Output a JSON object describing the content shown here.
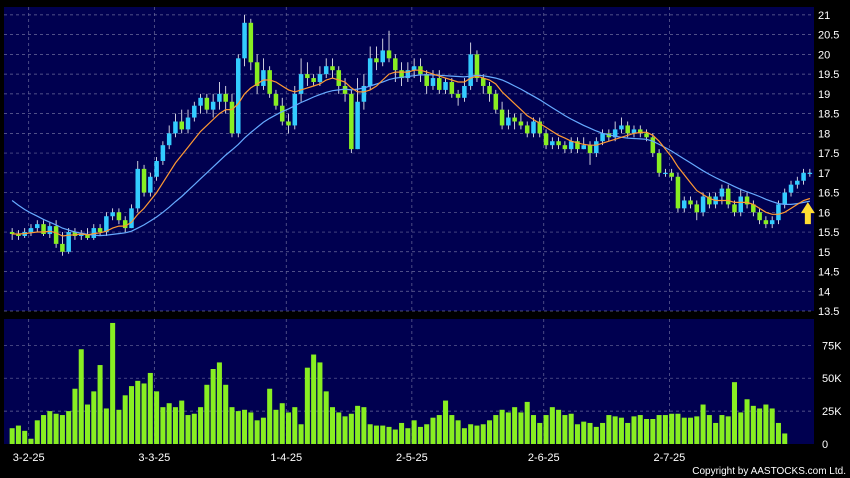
{
  "chart_data": [
    {
      "type": "candlestick",
      "title": "",
      "ylim": [
        13.5,
        21.2
      ],
      "y_ticks": [
        "21",
        "20.5",
        "20",
        "19.5",
        "19",
        "18.5",
        "18",
        "17.5",
        "17",
        "16.5",
        "16",
        "15.5",
        "15",
        "14.5",
        "14",
        "13.5"
      ],
      "x_labels": [
        "3-2-25",
        "3-3-25",
        "1-4-25",
        "2-5-25",
        "2-6-25",
        "2-7-25"
      ],
      "grid": true,
      "colors": {
        "background": "#000050",
        "up": "#33ccff",
        "down": "#88ee22",
        "ma_short": "#ff9933",
        "ma_long": "#66aaff",
        "grid": "#6a6a9a",
        "arrow": "#ffdd33"
      },
      "candles": [
        [
          15.5,
          15.45,
          15.6,
          15.3
        ],
        [
          15.45,
          15.4,
          15.55,
          15.3
        ],
        [
          15.4,
          15.5,
          15.6,
          15.35
        ],
        [
          15.5,
          15.6,
          15.7,
          15.4
        ],
        [
          15.6,
          15.7,
          15.8,
          15.5
        ],
        [
          15.7,
          15.45,
          15.8,
          15.4
        ],
        [
          15.45,
          15.65,
          15.75,
          15.35
        ],
        [
          15.65,
          15.2,
          15.8,
          15.1
        ],
        [
          15.2,
          15.0,
          15.5,
          14.9
        ],
        [
          15.0,
          15.5,
          15.6,
          14.95
        ],
        [
          15.5,
          15.4,
          15.6,
          15.3
        ],
        [
          15.4,
          15.45,
          15.55,
          15.3
        ],
        [
          15.45,
          15.35,
          15.6,
          15.3
        ],
        [
          15.35,
          15.6,
          15.7,
          15.3
        ],
        [
          15.6,
          15.5,
          15.7,
          15.4
        ],
        [
          15.5,
          15.9,
          16.0,
          15.4
        ],
        [
          15.9,
          16.0,
          16.1,
          15.8
        ],
        [
          16.0,
          15.8,
          16.1,
          15.7
        ],
        [
          15.8,
          15.6,
          15.9,
          15.5
        ],
        [
          15.6,
          16.1,
          16.2,
          15.6
        ],
        [
          16.1,
          17.1,
          17.3,
          16.0
        ],
        [
          17.1,
          16.5,
          17.2,
          16.4
        ],
        [
          16.5,
          16.9,
          17.0,
          16.4
        ],
        [
          16.9,
          17.3,
          17.4,
          16.8
        ],
        [
          17.3,
          17.7,
          17.8,
          17.2
        ],
        [
          17.7,
          18.0,
          18.2,
          17.6
        ],
        [
          18.0,
          18.3,
          18.5,
          17.9
        ],
        [
          18.3,
          18.1,
          18.6,
          18.0
        ],
        [
          18.1,
          18.4,
          18.6,
          18.0
        ],
        [
          18.4,
          18.7,
          18.8,
          18.3
        ],
        [
          18.7,
          18.9,
          19.0,
          18.5
        ],
        [
          18.9,
          18.6,
          19.0,
          18.5
        ],
        [
          18.6,
          18.8,
          19.0,
          18.4
        ],
        [
          18.8,
          19.0,
          19.3,
          18.6
        ],
        [
          19.0,
          18.8,
          19.2,
          18.5
        ],
        [
          18.8,
          18.0,
          19.0,
          17.9
        ],
        [
          18.0,
          19.9,
          20.0,
          17.9
        ],
        [
          19.9,
          20.8,
          21.0,
          19.7
        ],
        [
          20.8,
          19.8,
          20.9,
          19.6
        ],
        [
          19.8,
          19.2,
          20.0,
          19.0
        ],
        [
          19.2,
          19.6,
          19.9,
          19.1
        ],
        [
          19.6,
          19.0,
          19.7,
          18.9
        ],
        [
          19.0,
          18.7,
          19.1,
          18.6
        ],
        [
          18.7,
          18.3,
          18.9,
          18.2
        ],
        [
          18.3,
          18.2,
          18.5,
          18.0
        ],
        [
          18.2,
          19.0,
          19.2,
          18.1
        ],
        [
          19.0,
          19.5,
          19.9,
          18.8
        ],
        [
          19.5,
          19.4,
          19.8,
          19.2
        ],
        [
          19.4,
          19.3,
          19.5,
          19.2
        ],
        [
          19.3,
          19.5,
          19.7,
          19.2
        ],
        [
          19.5,
          19.7,
          19.9,
          19.4
        ],
        [
          19.7,
          19.6,
          19.9,
          19.4
        ],
        [
          19.6,
          19.2,
          19.7,
          19.0
        ],
        [
          19.2,
          19.0,
          19.4,
          18.8
        ],
        [
          19.0,
          17.6,
          19.1,
          17.5
        ],
        [
          17.6,
          18.8,
          19.4,
          17.6
        ],
        [
          18.8,
          19.2,
          19.5,
          18.6
        ],
        [
          19.2,
          19.9,
          20.2,
          19.1
        ],
        [
          19.9,
          19.8,
          20.2,
          19.6
        ],
        [
          19.8,
          20.1,
          20.4,
          19.7
        ],
        [
          20.1,
          19.9,
          20.6,
          19.8
        ],
        [
          19.9,
          19.6,
          20.0,
          19.3
        ],
        [
          19.6,
          19.4,
          19.8,
          19.2
        ],
        [
          19.4,
          19.6,
          19.8,
          19.3
        ],
        [
          19.6,
          19.7,
          19.9,
          19.4
        ],
        [
          19.7,
          19.5,
          19.9,
          19.3
        ],
        [
          19.5,
          19.2,
          19.6,
          19.0
        ],
        [
          19.2,
          19.4,
          19.6,
          19.1
        ],
        [
          19.4,
          19.1,
          19.6,
          19.0
        ],
        [
          19.1,
          19.3,
          19.4,
          19.0
        ],
        [
          19.3,
          19.0,
          19.4,
          18.9
        ],
        [
          19.0,
          18.9,
          19.1,
          18.7
        ],
        [
          18.9,
          19.2,
          19.4,
          18.8
        ],
        [
          19.2,
          20.0,
          20.3,
          19.1
        ],
        [
          20.0,
          19.4,
          20.1,
          19.3
        ],
        [
          19.4,
          19.2,
          19.5,
          19.0
        ],
        [
          19.2,
          19.0,
          19.3,
          18.8
        ],
        [
          19.0,
          18.6,
          19.1,
          18.5
        ],
        [
          18.6,
          18.2,
          18.8,
          18.1
        ],
        [
          18.2,
          18.4,
          18.6,
          18.1
        ],
        [
          18.4,
          18.3,
          18.5,
          18.1
        ],
        [
          18.3,
          18.2,
          18.5,
          18.1
        ],
        [
          18.2,
          18.0,
          18.3,
          17.9
        ],
        [
          18.0,
          18.3,
          18.4,
          17.9
        ],
        [
          18.3,
          18.0,
          18.4,
          17.9
        ],
        [
          18.0,
          17.7,
          18.1,
          17.6
        ],
        [
          17.7,
          17.8,
          17.9,
          17.6
        ],
        [
          17.8,
          17.7,
          17.9,
          17.6
        ],
        [
          17.7,
          17.6,
          17.8,
          17.5
        ],
        [
          17.6,
          17.8,
          17.9,
          17.5
        ],
        [
          17.8,
          17.6,
          17.9,
          17.5
        ],
        [
          17.6,
          17.7,
          17.9,
          17.6
        ],
        [
          17.7,
          17.5,
          17.8,
          17.2
        ],
        [
          17.5,
          17.8,
          17.9,
          17.4
        ],
        [
          17.8,
          18.0,
          18.1,
          17.7
        ],
        [
          18.0,
          17.9,
          18.1,
          17.8
        ],
        [
          17.9,
          18.1,
          18.3,
          17.8
        ],
        [
          18.1,
          18.2,
          18.4,
          18.0
        ],
        [
          18.2,
          18.0,
          18.3,
          17.9
        ],
        [
          18.0,
          18.1,
          18.2,
          17.9
        ],
        [
          18.1,
          18.0,
          18.2,
          17.9
        ],
        [
          18.0,
          17.9,
          18.1,
          17.8
        ],
        [
          17.9,
          17.5,
          18.0,
          17.4
        ],
        [
          17.5,
          17.0,
          17.6,
          16.9
        ],
        [
          17.0,
          17.0,
          17.1,
          16.9
        ],
        [
          17.0,
          16.9,
          17.1,
          16.8
        ],
        [
          16.9,
          16.1,
          17.0,
          16.0
        ],
        [
          16.1,
          16.3,
          16.4,
          16.0
        ],
        [
          16.3,
          16.2,
          16.4,
          16.1
        ],
        [
          16.2,
          16.0,
          16.3,
          15.8
        ],
        [
          16.0,
          16.4,
          16.5,
          15.9
        ],
        [
          16.4,
          16.2,
          16.5,
          16.1
        ],
        [
          16.2,
          16.4,
          16.5,
          16.1
        ],
        [
          16.4,
          16.6,
          16.7,
          16.2
        ],
        [
          16.6,
          16.2,
          16.7,
          16.1
        ],
        [
          16.2,
          16.0,
          16.3,
          15.9
        ],
        [
          16.0,
          16.4,
          16.6,
          15.9
        ],
        [
          16.4,
          16.2,
          16.5,
          16.1
        ],
        [
          16.2,
          16.0,
          16.3,
          15.9
        ],
        [
          16.0,
          15.8,
          16.1,
          15.7
        ],
        [
          15.8,
          15.7,
          15.9,
          15.6
        ],
        [
          15.7,
          15.8,
          15.9,
          15.6
        ],
        [
          15.8,
          16.2,
          16.3,
          15.7
        ],
        [
          16.2,
          16.5,
          16.6,
          16.1
        ],
        [
          16.5,
          16.7,
          16.8,
          16.4
        ],
        [
          16.7,
          16.8,
          16.9,
          16.6
        ],
        [
          16.8,
          17.0,
          17.1,
          16.7
        ],
        [
          17.0,
          17.0,
          17.1,
          16.9
        ]
      ],
      "ma_short": [
        15.45,
        15.45,
        15.46,
        15.48,
        15.5,
        15.5,
        15.52,
        15.48,
        15.4,
        15.42,
        15.43,
        15.45,
        15.43,
        15.46,
        15.48,
        15.52,
        15.6,
        15.65,
        15.65,
        15.75,
        15.95,
        16.1,
        16.3,
        16.5,
        16.75,
        17.0,
        17.25,
        17.45,
        17.65,
        17.85,
        18.05,
        18.2,
        18.35,
        18.5,
        18.6,
        18.6,
        18.75,
        19.0,
        19.15,
        19.25,
        19.35,
        19.35,
        19.3,
        19.2,
        19.1,
        19.05,
        19.1,
        19.15,
        19.2,
        19.25,
        19.35,
        19.4,
        19.35,
        19.3,
        19.15,
        19.05,
        19.05,
        19.1,
        19.2,
        19.35,
        19.5,
        19.55,
        19.55,
        19.55,
        19.6,
        19.6,
        19.55,
        19.5,
        19.45,
        19.4,
        19.35,
        19.3,
        19.3,
        19.4,
        19.45,
        19.4,
        19.35,
        19.25,
        19.05,
        18.9,
        18.75,
        18.6,
        18.45,
        18.35,
        18.25,
        18.15,
        18.05,
        17.95,
        17.88,
        17.8,
        17.76,
        17.72,
        17.7,
        17.7,
        17.75,
        17.8,
        17.85,
        17.9,
        17.95,
        18.0,
        18.02,
        18.03,
        17.95,
        17.8,
        17.6,
        17.4,
        17.15,
        16.95,
        16.75,
        16.55,
        16.45,
        16.35,
        16.3,
        16.3,
        16.3,
        16.25,
        16.25,
        16.25,
        16.2,
        16.1,
        16.0,
        15.95,
        15.95,
        16.0,
        16.1,
        16.2,
        16.3,
        16.35
      ],
      "ma_long": [
        16.3,
        16.18,
        16.07,
        15.98,
        15.9,
        15.82,
        15.75,
        15.68,
        15.6,
        15.55,
        15.5,
        15.47,
        15.44,
        15.42,
        15.41,
        15.42,
        15.44,
        15.46,
        15.48,
        15.52,
        15.6,
        15.68,
        15.78,
        15.88,
        16.0,
        16.13,
        16.27,
        16.4,
        16.55,
        16.7,
        16.85,
        17.0,
        17.15,
        17.3,
        17.45,
        17.58,
        17.72,
        17.88,
        18.02,
        18.15,
        18.28,
        18.38,
        18.47,
        18.55,
        18.62,
        18.7,
        18.78,
        18.85,
        18.92,
        18.98,
        19.04,
        19.08,
        19.1,
        19.12,
        19.1,
        19.12,
        19.15,
        19.2,
        19.25,
        19.3,
        19.36,
        19.4,
        19.42,
        19.44,
        19.46,
        19.48,
        19.48,
        19.48,
        19.47,
        19.46,
        19.45,
        19.44,
        19.43,
        19.45,
        19.47,
        19.46,
        19.43,
        19.4,
        19.35,
        19.28,
        19.2,
        19.12,
        19.03,
        18.94,
        18.85,
        18.75,
        18.65,
        18.55,
        18.45,
        18.36,
        18.28,
        18.2,
        18.13,
        18.06,
        18.0,
        17.96,
        17.93,
        17.9,
        17.88,
        17.87,
        17.86,
        17.85,
        17.8,
        17.72,
        17.64,
        17.55,
        17.45,
        17.35,
        17.25,
        17.15,
        17.05,
        16.96,
        16.88,
        16.8,
        16.73,
        16.65,
        16.58,
        16.52,
        16.46,
        16.4,
        16.33,
        16.27,
        16.22,
        16.2,
        16.2,
        16.22,
        16.25,
        16.28
      ]
    },
    {
      "type": "bar",
      "title": "",
      "ylim": [
        0,
        95
      ],
      "y_ticks": [
        "75K",
        "50K",
        "25K",
        "0"
      ],
      "values": [
        12,
        14,
        10,
        4,
        18,
        22,
        25,
        23,
        22,
        25,
        42,
        72,
        30,
        40,
        60,
        27,
        92,
        26,
        37,
        44,
        48,
        46,
        54,
        40,
        28,
        31,
        28,
        33,
        22,
        23,
        28,
        45,
        57,
        62,
        45,
        28,
        25,
        26,
        24,
        18,
        20,
        42,
        26,
        31,
        24,
        28,
        15,
        58,
        68,
        62,
        40,
        28,
        24,
        21,
        23,
        29,
        28,
        15,
        14,
        14,
        13,
        11,
        16,
        12,
        18,
        13,
        15,
        20,
        22,
        33,
        22,
        18,
        12,
        15,
        14,
        15,
        18,
        22,
        26,
        24,
        28,
        24,
        32,
        22,
        16,
        22,
        28,
        26,
        22,
        23,
        15,
        17,
        16,
        13,
        16,
        22,
        21,
        20,
        16,
        21,
        22,
        19,
        19,
        22,
        22,
        23,
        23,
        20,
        20,
        21,
        30,
        22,
        16,
        22,
        21,
        47,
        24,
        34,
        29,
        27,
        30,
        27,
        16,
        8
      ]
    }
  ],
  "footer": {
    "copyright": "Copyright by AASTOCKS.com Ltd."
  }
}
